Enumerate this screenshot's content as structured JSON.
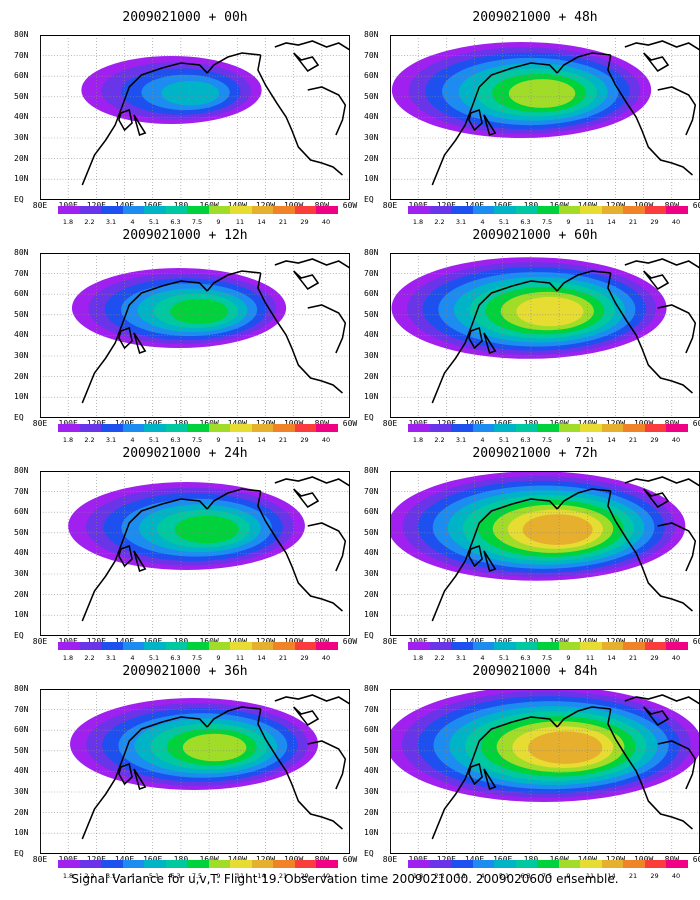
{
  "panels": [
    {
      "title": "2009021000 + 00h",
      "intensity": 0.3
    },
    {
      "title": "2009021000 + 12h",
      "intensity": 0.45
    },
    {
      "title": "2009021000 + 24h",
      "intensity": 0.55
    },
    {
      "title": "2009021000 + 36h",
      "intensity": 0.6
    },
    {
      "title": "2009021000 + 48h",
      "intensity": 0.65
    },
    {
      "title": "2009021000 + 60h",
      "intensity": 0.72
    },
    {
      "title": "2009021000 + 72h",
      "intensity": 0.82
    },
    {
      "title": "2009021000 + 84h",
      "intensity": 0.9
    }
  ],
  "lat_labels": [
    "80N",
    "70N",
    "60N",
    "50N",
    "40N",
    "30N",
    "20N",
    "10N",
    "EQ"
  ],
  "lon_labels": [
    "80E",
    "100E",
    "120E",
    "140E",
    "160E",
    "180",
    "160W",
    "140W",
    "120W",
    "100W",
    "80W",
    "60W"
  ],
  "colorbar": {
    "labels": [
      "1.8",
      "2.2",
      "3.1",
      "4",
      "5.1",
      "6.3",
      "7.5",
      "9",
      "11",
      "14",
      "21",
      "29",
      "40"
    ],
    "colors": [
      "#a020f0",
      "#6a34e8",
      "#1e50f0",
      "#1c8cf0",
      "#00b4c8",
      "#00c8a0",
      "#00d23c",
      "#a0dc28",
      "#e6dc32",
      "#e6af2d",
      "#f08228",
      "#fa3c3c",
      "#f00082"
    ]
  },
  "caption": "Signal Variance for u,v,T. Flight 19. Observation time 2009021000. 2009020600 ensemble."
}
